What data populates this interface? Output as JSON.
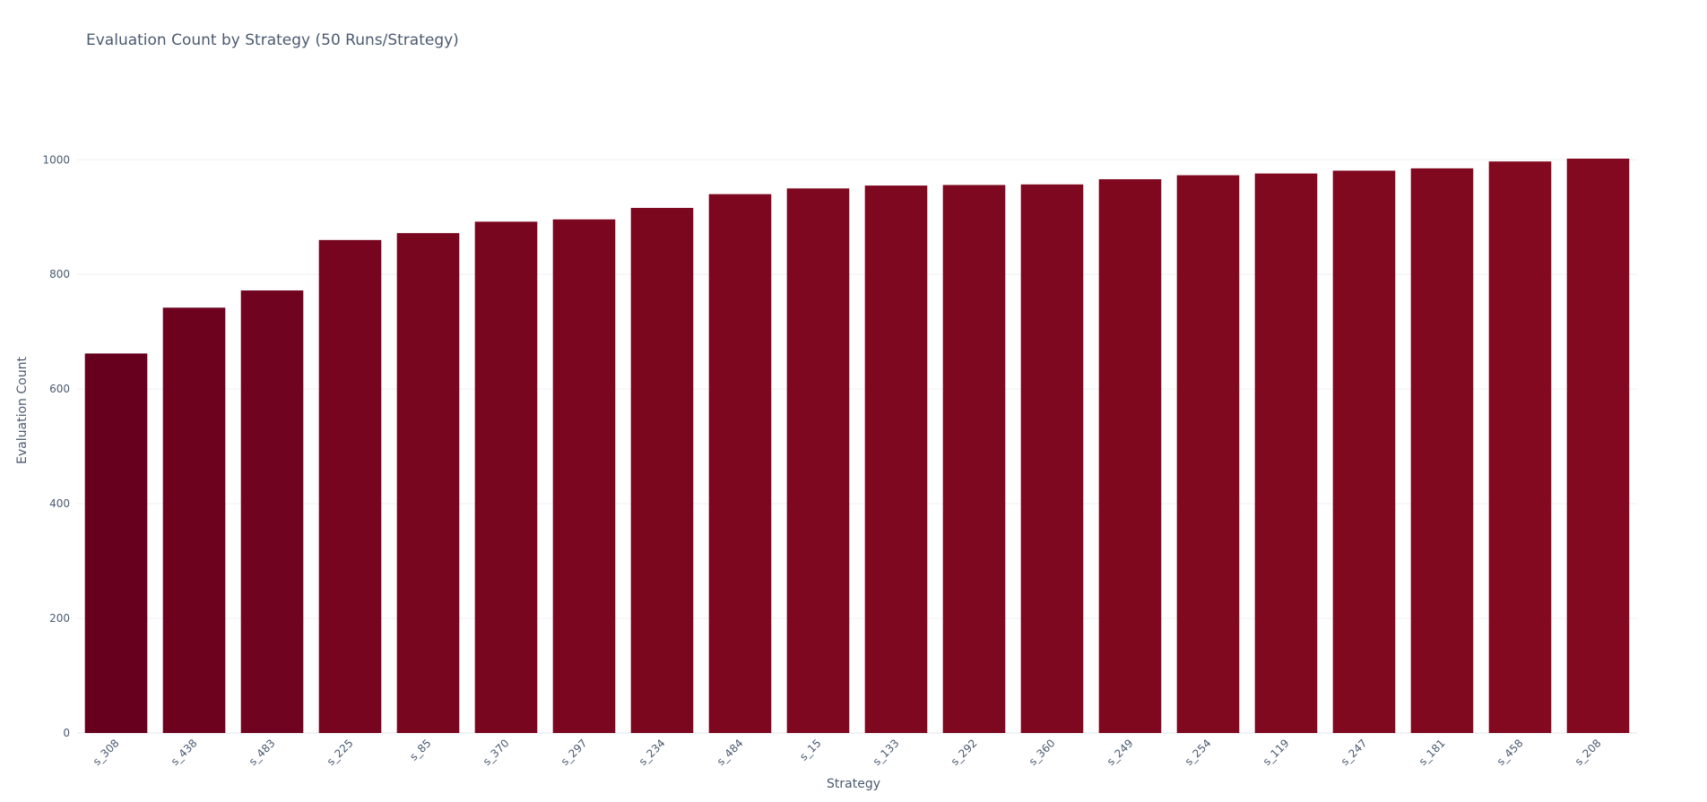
{
  "chart_data": {
    "type": "bar",
    "title": "Evaluation Count by Strategy (50 Runs/Strategy)",
    "xlabel": "Strategy",
    "ylabel": "Evaluation Count",
    "categories": [
      "s_308",
      "s_438",
      "s_483",
      "s_225",
      "s_85",
      "s_370",
      "s_297",
      "s_234",
      "s_484",
      "s_15",
      "s_133",
      "s_292",
      "s_360",
      "s_249",
      "s_254",
      "s_119",
      "s_247",
      "s_181",
      "s_458",
      "s_208"
    ],
    "values": [
      662,
      742,
      772,
      860,
      872,
      892,
      896,
      916,
      940,
      950,
      955,
      956,
      957,
      966,
      973,
      976,
      981,
      985,
      997,
      1002
    ],
    "y_ticks": [
      0,
      200,
      400,
      600,
      800,
      1000
    ],
    "ylim": [
      0,
      1002
    ],
    "grid": true,
    "color_scale": {
      "low": "#67001f",
      "high": "#82091f"
    }
  }
}
